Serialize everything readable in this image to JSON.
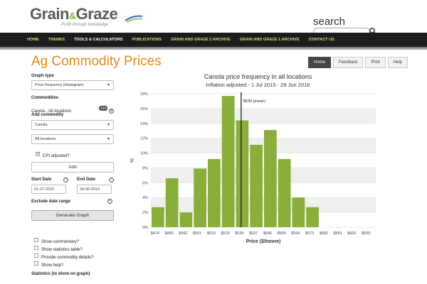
{
  "header": {
    "logo_text_1": "Grain",
    "logo_amp": "&",
    "logo_text_2": "Graze",
    "logo_tagline": "Profit through knowledge",
    "search_label": "search",
    "search_placeholder": ""
  },
  "nav": {
    "items": [
      "HOME",
      "THEMES",
      "TOOLS & CALCULATORS",
      "PUBLICATIONS",
      "GRAIN AND GRAZE 2 ARCHIVE",
      "GRAIN AND GRAZE 1 ARCHIVE",
      "CONTACT US"
    ],
    "active_index": 2
  },
  "page": {
    "title": "Ag Commodity Prices",
    "tabs": [
      "Home",
      "Feedback",
      "Print",
      "Help"
    ],
    "active_tab": "Home"
  },
  "sidebar": {
    "graph_type_label": "Graph type",
    "graph_type_value": "Price frequency (Histogram)",
    "commodities_label": "Commodities",
    "commodity_item": "Canola - All locations",
    "commodity_badge": "CPI",
    "add_commodity_label": "Add commodity",
    "commodity_select": "Canola",
    "location_select": "All locations",
    "cpi_label": "CPI adjusted?",
    "add_button": "Add",
    "start_date_label": "Start Date",
    "start_date_value": "01-07-2015",
    "end_date_label": "End Date",
    "end_date_value": "28-06-2016",
    "exclude_label": "Exclude date range",
    "generate_button": "Generate Graph",
    "options": [
      "Show commentary?",
      "Show statistics table?",
      "Provide commodity details?",
      "Show help?"
    ],
    "stats_label": "Statistics (to show on graph)"
  },
  "colors": {
    "accent_orange": "#e08a1c",
    "nav_green": "#c8e06e",
    "bar_green": "#8aae3a",
    "nav_bg": "#1c1c1c"
  },
  "chart_data": {
    "type": "bar",
    "title": "Canola price frequency in all locations",
    "subtitle": "Inflation adjusted - 1 Jul 2015 - 28 Jun 2016",
    "xlabel": "Price ($/tonne)",
    "ylabel": "%",
    "categories": [
      "$474",
      "$483",
      "$492",
      "$501",
      "$510",
      "$519",
      "$528",
      "$537",
      "$546",
      "$555",
      "$564",
      "$573",
      "$582",
      "$591",
      "$600",
      "$609"
    ],
    "values": [
      2.7,
      6.6,
      2.0,
      7.9,
      9.2,
      17.7,
      14.4,
      11.1,
      13.1,
      9.2,
      4.0,
      2.7,
      0,
      0,
      0,
      0
    ],
    "ylim": [
      0,
      18
    ],
    "yticks": [
      "0%",
      "2%",
      "4%",
      "6%",
      "8%",
      "10%",
      "12%",
      "14%",
      "16%",
      "18%"
    ],
    "mean_label": "$530 (mean)",
    "mean_value": 530,
    "grid": true
  }
}
